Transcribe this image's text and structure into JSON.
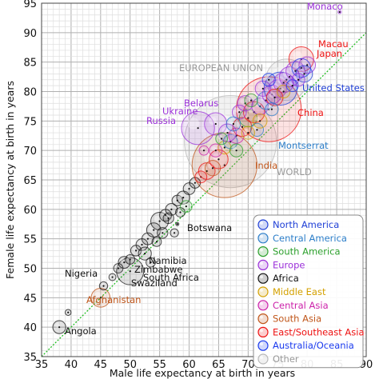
{
  "chart_data": {
    "type": "scatter",
    "title": "",
    "xlabel": "Male life expectancy at birth in years",
    "ylabel": "Female life expectancy at birth in years",
    "xlim": [
      35,
      90
    ],
    "ylim": [
      35,
      95
    ],
    "x_ticks": [
      "35",
      "40",
      "45",
      "50",
      "55",
      "60",
      "65",
      "70",
      "75",
      "80",
      "85",
      "90"
    ],
    "y_ticks": [
      "35",
      "40",
      "45",
      "50",
      "55",
      "60",
      "65",
      "70",
      "75",
      "80",
      "85",
      "90",
      "95"
    ],
    "grid": "minor grid every 1 year, major every 5",
    "reference_line": "y = x (dotted green)",
    "legend_position": "bottom-right",
    "legend": [
      {
        "name": "North America",
        "color": "#1f3fd6"
      },
      {
        "name": "Central America",
        "color": "#2c7ec9"
      },
      {
        "name": "South America",
        "color": "#2ca02c"
      },
      {
        "name": "Europe",
        "color": "#9b30d9"
      },
      {
        "name": "Africa",
        "color": "#111111"
      },
      {
        "name": "Middle East",
        "color": "#d4a100"
      },
      {
        "name": "Central Asia",
        "color": "#cc22aa"
      },
      {
        "name": "South Asia",
        "color": "#c0561a"
      },
      {
        "name": "East/Southeast Asia",
        "color": "#ee1111"
      },
      {
        "name": "Australia/Oceania",
        "color": "#1a3aee"
      },
      {
        "name": "Other",
        "color": "#b8b8b8"
      }
    ],
    "labeled_points": [
      {
        "name": "Monaco",
        "x": 85.5,
        "y": 93.5,
        "group": "Europe"
      },
      {
        "name": "Macau",
        "x": 79.5,
        "y": 85.5,
        "group": "East/Southeast Asia"
      },
      {
        "name": "Japan",
        "x": 78.5,
        "y": 84.5,
        "group": "East/Southeast Asia"
      },
      {
        "name": "EUROPEAN UNION",
        "x": 75.5,
        "y": 81.5,
        "group": "Other"
      },
      {
        "name": "United States",
        "x": 75.5,
        "y": 80.5,
        "group": "North America"
      },
      {
        "name": "Belarus",
        "x": 64.5,
        "y": 76.5,
        "group": "Europe"
      },
      {
        "name": "Ukraine",
        "x": 63.5,
        "y": 75.0,
        "group": "Europe"
      },
      {
        "name": "China",
        "x": 71.5,
        "y": 75.5,
        "group": "East/Southeast Asia"
      },
      {
        "name": "Russia",
        "x": 60.0,
        "y": 73.2,
        "group": "Europe"
      },
      {
        "name": "Montserrat",
        "x": 71.5,
        "y": 70.5,
        "group": "Central America"
      },
      {
        "name": "India",
        "x": 66.0,
        "y": 68.0,
        "group": "South Asia"
      },
      {
        "name": "WORLD",
        "x": 65.5,
        "y": 69.5,
        "group": "Other"
      },
      {
        "name": "Botswana",
        "x": 58.0,
        "y": 57.5,
        "group": "Africa"
      },
      {
        "name": "Namibia",
        "x": 53.0,
        "y": 52.0,
        "group": "Africa"
      },
      {
        "name": "Zimbabwe",
        "x": 51.5,
        "y": 50.7,
        "group": "Africa"
      },
      {
        "name": "Nigeria",
        "x": 47.5,
        "y": 49.5,
        "group": "Africa"
      },
      {
        "name": "South Africa",
        "x": 51.5,
        "y": 49.5,
        "group": "Africa"
      },
      {
        "name": "Swaziland",
        "x": 51.5,
        "y": 48.5,
        "group": "Africa"
      },
      {
        "name": "Afghanistan",
        "x": 44.5,
        "y": 45.0,
        "group": "South Asia"
      },
      {
        "name": "Angola",
        "x": 37.5,
        "y": 40.0,
        "group": "Africa"
      }
    ],
    "unlabeled_points": [
      {
        "x": 39.5,
        "y": 42.5,
        "g": "Africa",
        "s": 0.5
      },
      {
        "x": 45.5,
        "y": 47.0,
        "g": "Africa",
        "s": 0.7
      },
      {
        "x": 47.0,
        "y": 48.5,
        "g": "Africa",
        "s": 0.6
      },
      {
        "x": 48.0,
        "y": 50.0,
        "g": "Africa",
        "s": 0.8
      },
      {
        "x": 49.0,
        "y": 51.0,
        "g": "Africa",
        "s": 1.0
      },
      {
        "x": 50.0,
        "y": 51.5,
        "g": "Africa",
        "s": 0.8
      },
      {
        "x": 51.0,
        "y": 53.0,
        "g": "Africa",
        "s": 0.9
      },
      {
        "x": 52.0,
        "y": 54.0,
        "g": "Africa",
        "s": 1.0
      },
      {
        "x": 52.5,
        "y": 52.5,
        "g": "Africa",
        "s": 1.1
      },
      {
        "x": 53.0,
        "y": 55.0,
        "g": "Africa",
        "s": 1.0
      },
      {
        "x": 54.0,
        "y": 56.5,
        "g": "Africa",
        "s": 1.2
      },
      {
        "x": 55.0,
        "y": 58.0,
        "g": "Africa",
        "s": 1.5
      },
      {
        "x": 56.0,
        "y": 59.0,
        "g": "Africa",
        "s": 1.0
      },
      {
        "x": 56.5,
        "y": 58.5,
        "g": "Africa",
        "s": 0.9
      },
      {
        "x": 57.0,
        "y": 60.0,
        "g": "Africa",
        "s": 1.0
      },
      {
        "x": 58.0,
        "y": 61.5,
        "g": "Africa",
        "s": 0.9
      },
      {
        "x": 59.0,
        "y": 62.0,
        "g": "Africa",
        "s": 1.1
      },
      {
        "x": 60.0,
        "y": 63.5,
        "g": "Africa",
        "s": 1.0
      },
      {
        "x": 61.0,
        "y": 64.5,
        "g": "Africa",
        "s": 0.9
      },
      {
        "x": 53.5,
        "y": 51.0,
        "g": "Africa",
        "s": 0.8
      },
      {
        "x": 54.5,
        "y": 54.5,
        "g": "Africa",
        "s": 0.8
      },
      {
        "x": 55.5,
        "y": 56.0,
        "g": "Africa",
        "s": 0.9
      },
      {
        "x": 58.5,
        "y": 59.5,
        "g": "Africa",
        "s": 0.8
      },
      {
        "x": 57.5,
        "y": 56.0,
        "g": "Africa",
        "s": 0.7
      },
      {
        "x": 59.5,
        "y": 60.5,
        "g": "South America",
        "s": 1.0
      },
      {
        "x": 62.0,
        "y": 65.5,
        "g": "East/Southeast Asia",
        "s": 1.0
      },
      {
        "x": 63.0,
        "y": 66.5,
        "g": "East/Southeast Asia",
        "s": 1.4
      },
      {
        "x": 64.0,
        "y": 67.0,
        "g": "South Asia",
        "s": 1.3
      },
      {
        "x": 65.0,
        "y": 68.5,
        "g": "East/Southeast Asia",
        "s": 1.6
      },
      {
        "x": 66.0,
        "y": 70.5,
        "g": "Middle East",
        "s": 1.1
      },
      {
        "x": 67.0,
        "y": 71.5,
        "g": "Central America",
        "s": 1.2
      },
      {
        "x": 68.0,
        "y": 72.5,
        "g": "Central Asia",
        "s": 1.3
      },
      {
        "x": 69.0,
        "y": 74.0,
        "g": "East/Southeast Asia",
        "s": 1.6
      },
      {
        "x": 70.0,
        "y": 75.5,
        "g": "South America",
        "s": 1.5
      },
      {
        "x": 71.0,
        "y": 76.5,
        "g": "East/Southeast Asia",
        "s": 1.8
      },
      {
        "x": 72.0,
        "y": 77.5,
        "g": "Europe",
        "s": 1.4
      },
      {
        "x": 73.0,
        "y": 78.5,
        "g": "Central America",
        "s": 1.5
      },
      {
        "x": 74.0,
        "y": 79.5,
        "g": "Europe",
        "s": 1.6
      },
      {
        "x": 75.0,
        "y": 80.5,
        "g": "Europe",
        "s": 1.5
      },
      {
        "x": 76.0,
        "y": 81.5,
        "g": "Europe",
        "s": 1.7
      },
      {
        "x": 77.0,
        "y": 82.5,
        "g": "Europe",
        "s": 1.7
      },
      {
        "x": 78.0,
        "y": 83.5,
        "g": "Europe",
        "s": 1.6
      },
      {
        "x": 79.0,
        "y": 84.0,
        "g": "Australia/Oceania",
        "s": 1.6
      },
      {
        "x": 80.0,
        "y": 84.5,
        "g": "Europe",
        "s": 1.4
      },
      {
        "x": 79.5,
        "y": 83.0,
        "g": "North America",
        "s": 1.4
      },
      {
        "x": 66.5,
        "y": 73.0,
        "g": "Europe",
        "s": 1.5
      },
      {
        "x": 68.5,
        "y": 76.5,
        "g": "Europe",
        "s": 1.2
      },
      {
        "x": 69.5,
        "y": 78.0,
        "g": "Europe",
        "s": 1.3
      },
      {
        "x": 70.5,
        "y": 78.5,
        "g": "South America",
        "s": 1.1
      },
      {
        "x": 72.5,
        "y": 80.5,
        "g": "Europe",
        "s": 1.3
      },
      {
        "x": 73.5,
        "y": 82.0,
        "g": "Australia/Oceania",
        "s": 1.1
      },
      {
        "x": 74.5,
        "y": 79.0,
        "g": "East/Southeast Asia",
        "s": 1.4
      },
      {
        "x": 71.5,
        "y": 73.5,
        "g": "Central America",
        "s": 1.1
      },
      {
        "x": 70.0,
        "y": 73.0,
        "g": "Middle East",
        "s": 1.1
      },
      {
        "x": 68.0,
        "y": 70.0,
        "g": "South America",
        "s": 1.1
      },
      {
        "x": 72.0,
        "y": 75.0,
        "g": "Middle East",
        "s": 1.2
      },
      {
        "x": 74.0,
        "y": 77.0,
        "g": "Central America",
        "s": 1.1
      },
      {
        "x": 76.0,
        "y": 80.0,
        "g": "Middle East",
        "s": 1.1
      },
      {
        "x": 77.5,
        "y": 81.0,
        "g": "Australia/Oceania",
        "s": 1.0
      },
      {
        "x": 78.5,
        "y": 82.0,
        "g": "Europe",
        "s": 1.1
      },
      {
        "x": 64.5,
        "y": 70.0,
        "g": "Central Asia",
        "s": 1.1
      },
      {
        "x": 65.5,
        "y": 72.0,
        "g": "South America",
        "s": 1.0
      },
      {
        "x": 67.5,
        "y": 74.5,
        "g": "Central America",
        "s": 1.2
      },
      {
        "x": 62.5,
        "y": 70.0,
        "g": "Central Asia",
        "s": 0.8
      }
    ],
    "big_bubbles": [
      {
        "name": "WORLD",
        "x": 67.0,
        "y": 71.5,
        "s": 7.8,
        "g": "Other"
      },
      {
        "name": "EUROPEAN UNION",
        "x": 76.5,
        "y": 82.0,
        "s": 3.5,
        "g": "Other"
      },
      {
        "name": "China",
        "x": 73.5,
        "y": 77.0,
        "s": 5.5,
        "g": "East/Southeast Asia"
      },
      {
        "name": "India",
        "x": 66.0,
        "y": 67.5,
        "s": 5.5,
        "g": "South Asia"
      },
      {
        "name": "Russia",
        "x": 61.5,
        "y": 73.8,
        "s": 2.8,
        "g": "Europe"
      },
      {
        "name": "Ukraine",
        "x": 64.5,
        "y": 74.5,
        "s": 1.9,
        "g": "Europe"
      },
      {
        "name": "Nigeria",
        "x": 50.0,
        "y": 49.5,
        "s": 2.3,
        "g": "Africa"
      },
      {
        "name": "Afghanistan",
        "x": 45.0,
        "y": 45.0,
        "s": 1.6,
        "g": "South Asia"
      },
      {
        "name": "Angola",
        "x": 38.0,
        "y": 40.0,
        "s": 1.1,
        "g": "Africa"
      },
      {
        "name": "Japan",
        "x": 79.0,
        "y": 85.5,
        "s": 2.1,
        "g": "East/Southeast Asia"
      },
      {
        "name": "United States",
        "x": 75.5,
        "y": 80.5,
        "s": 2.8,
        "g": "North America"
      }
    ]
  }
}
